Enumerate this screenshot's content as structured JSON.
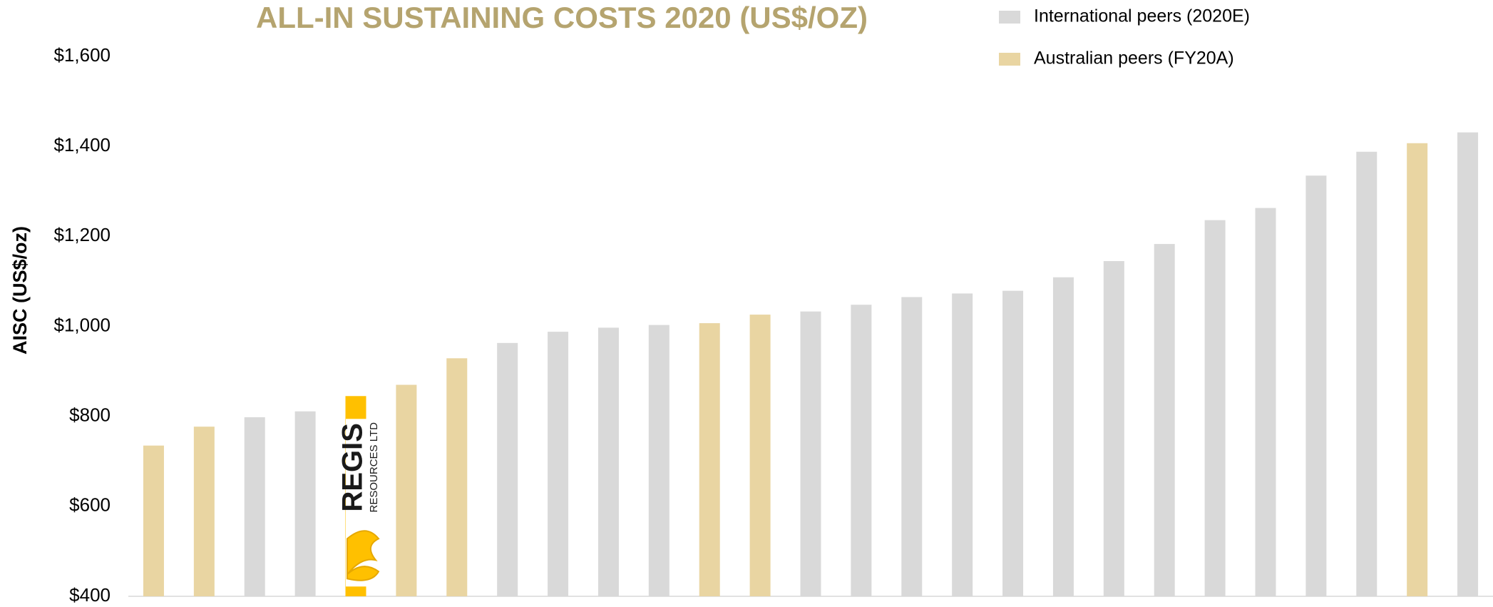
{
  "chart_data": {
    "type": "bar",
    "title": "ALL-IN SUSTAINING COSTS 2020 (US$/OZ)",
    "y_label": "AISC (US$/oz)",
    "categories": [
      null,
      null,
      null,
      null,
      null,
      null,
      null,
      null,
      null,
      null,
      null,
      null,
      null,
      null,
      null,
      null,
      null,
      null,
      null,
      null,
      null,
      null,
      null,
      null,
      null,
      null,
      null
    ],
    "series": [
      {
        "name": "International peers (2020E)",
        "color": "#d9d9d9",
        "values": [
          null,
          null,
          798,
          811,
          null,
          null,
          null,
          963,
          988,
          997,
          1003,
          null,
          null,
          1033,
          1048,
          1065,
          1073,
          1079,
          1109,
          1145,
          1183,
          1236,
          1263,
          1335,
          1388,
          null,
          1431
        ]
      },
      {
        "name": "Australian peers (FY20A)",
        "color": "#e9d5a2",
        "values": [
          735,
          777,
          null,
          null,
          null,
          870,
          929,
          null,
          null,
          null,
          null,
          1007,
          1026,
          null,
          null,
          null,
          null,
          null,
          null,
          null,
          null,
          null,
          null,
          null,
          null,
          1407,
          null
        ]
      },
      {
        "color": "#ffc000",
        "values": [
          null,
          null,
          null,
          null,
          845,
          null,
          null,
          null,
          null,
          null,
          null,
          null,
          null,
          null,
          null,
          null,
          null,
          null,
          null,
          null,
          null,
          null,
          null,
          null,
          null,
          null,
          null
        ]
      }
    ],
    "annotations": [
      "REGIS",
      "RESOURCES LTD"
    ],
    "ylim": [
      400,
      1600
    ],
    "yticks": [
      {
        "value": 400,
        "label": "$400"
      },
      {
        "value": 600,
        "label": "$600"
      },
      {
        "value": 800,
        "label": "$800"
      },
      {
        "value": 1000,
        "label": "$1,000"
      },
      {
        "value": 1200,
        "label": "$1,200"
      },
      {
        "value": 1400,
        "label": "$1,400"
      },
      {
        "value": 1600,
        "label": "$1,600"
      }
    ],
    "grid": false,
    "legend": "top-right"
  }
}
